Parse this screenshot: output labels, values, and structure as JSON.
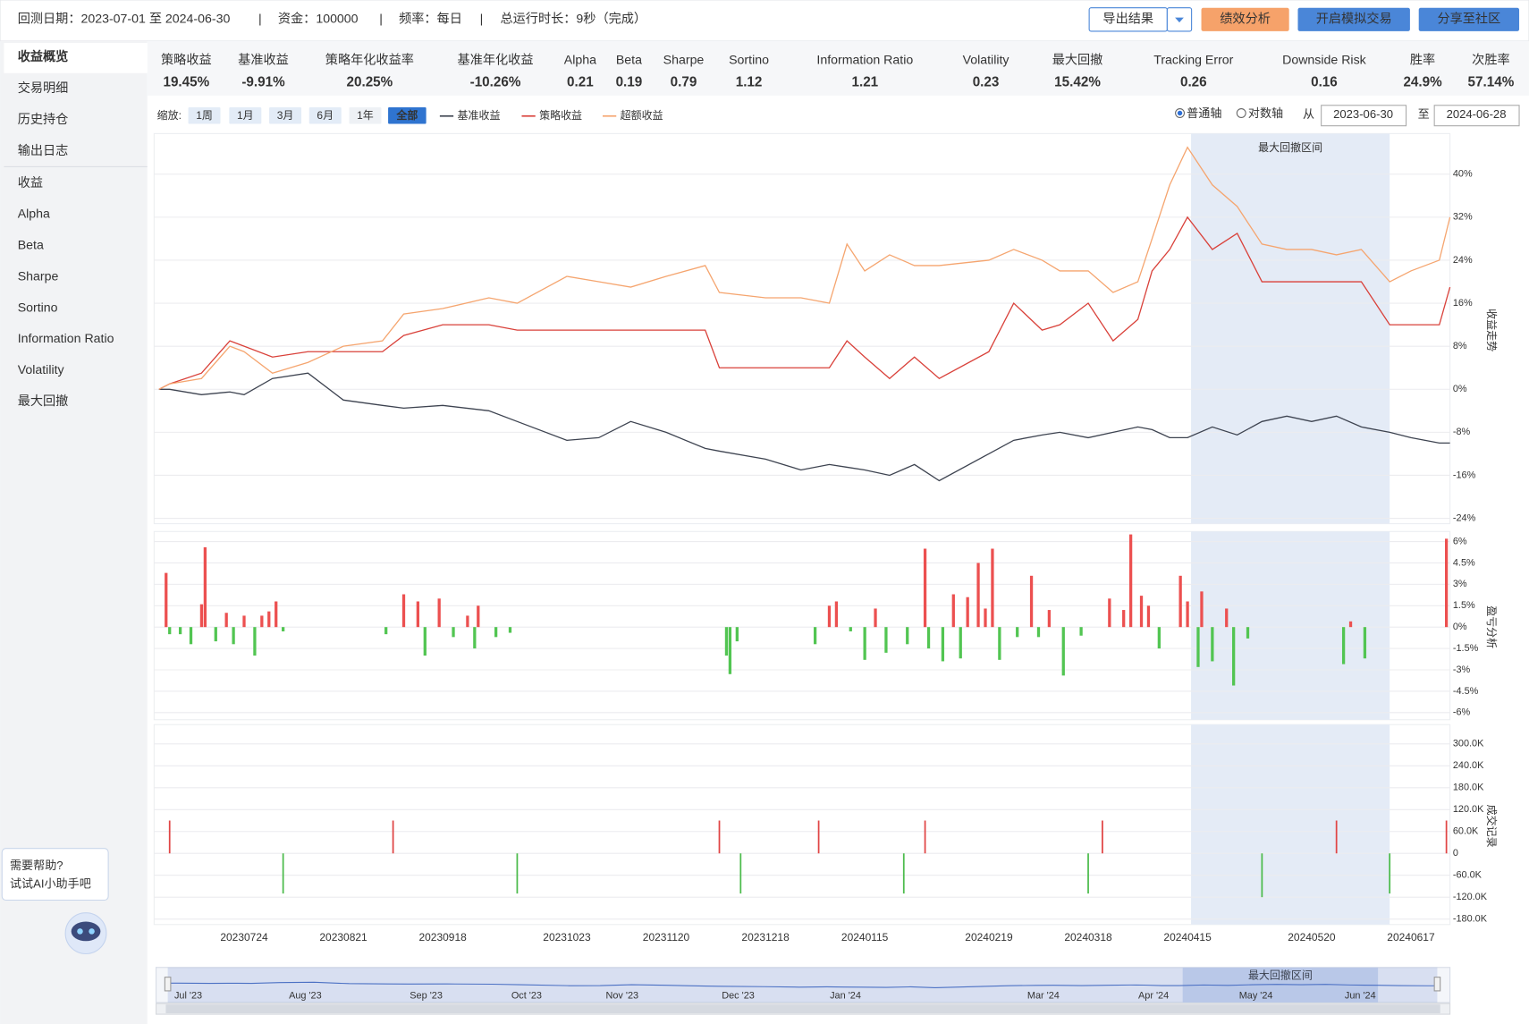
{
  "header": {
    "date_range": "回测日期：2023-07-01 至 2024-06-30",
    "separator": "|",
    "capital": "资金：100000",
    "frequency": "频率：每日",
    "runtime": "总运行时长：9秒（完成）",
    "buttons": [
      "导出结果",
      "绩效分析",
      "开启模拟交易",
      "分享至社区"
    ]
  },
  "sidebar": [
    "收益概览",
    "交易明细",
    "历史持仓",
    "输出日志",
    "收益",
    "Alpha",
    "Beta",
    "Sharpe",
    "Sortino",
    "Information Ratio",
    "Volatility",
    "最大回撤"
  ],
  "metrics": [
    {
      "label": "策略收益",
      "value": "19.45%"
    },
    {
      "label": "基准收益",
      "value": "-9.91%"
    },
    {
      "label": "策略年化收益率",
      "value": "20.25%"
    },
    {
      "label": "基准年化收益",
      "value": "-10.26%"
    },
    {
      "label": "Alpha",
      "value": "0.21"
    },
    {
      "label": "Beta",
      "value": "0.19"
    },
    {
      "label": "Sharpe",
      "value": "0.79"
    },
    {
      "label": "Sortino",
      "value": "1.12"
    },
    {
      "label": "Information Ratio",
      "value": "1.21"
    },
    {
      "label": "Volatility",
      "value": "0.23"
    },
    {
      "label": "最大回撤",
      "value": "15.42%"
    },
    {
      "label": "Tracking Error",
      "value": "0.26"
    },
    {
      "label": "Downside Risk",
      "value": "0.16"
    },
    {
      "label": "胜率",
      "value": "24.9%"
    },
    {
      "label": "次胜率",
      "value": "57.14%"
    }
  ],
  "controls": {
    "zoom_label": "缩放:",
    "zoom_buttons": [
      "1周",
      "1月",
      "3月",
      "6月",
      "1年",
      "全部"
    ],
    "axis_options": [
      "普通轴",
      "对数轴"
    ],
    "from_label": "从",
    "from": "2023-06-30",
    "to_label": "至",
    "to": "2024-06-28"
  },
  "chart_data": [
    {
      "type": "line",
      "y_axis_label": "收益走势",
      "x": [
        "20230630",
        "20230703",
        "20230712",
        "20230720",
        "20230724",
        "20230801",
        "20230811",
        "20230821",
        "20230901",
        "20230907",
        "20230918",
        "20231001",
        "20231009",
        "20231023",
        "20231101",
        "20231110",
        "20231120",
        "20231201",
        "20231205",
        "20231218",
        "20231228",
        "20240105",
        "20240110",
        "20240115",
        "20240122",
        "20240129",
        "20240205",
        "20240219",
        "20240226",
        "20240305",
        "20240310",
        "20240318",
        "20240325",
        "20240401",
        "20240405",
        "20240410",
        "20240415",
        "20240422",
        "20240429",
        "20240506",
        "20240513",
        "20240520",
        "20240527",
        "20240603",
        "20240611",
        "20240617",
        "20240625",
        "20240628"
      ],
      "series": [
        {
          "name": "基准收益",
          "color": "#3d4350",
          "values": [
            0,
            0,
            -1,
            -0.5,
            -1,
            2,
            3,
            -2,
            -3,
            -3.5,
            -3,
            -4,
            -6,
            -9.5,
            -9,
            -6,
            -8,
            -11,
            -11.5,
            -13,
            -15,
            -14,
            -14.5,
            -15,
            -16,
            -14,
            -17,
            -12,
            -9.5,
            -8.5,
            -8,
            -9,
            -8,
            -7,
            -7.5,
            -9,
            -9,
            -7,
            -8.5,
            -6,
            -5,
            -6,
            -5,
            -7,
            -8,
            -9,
            -10,
            -10
          ]
        },
        {
          "name": "策略收益",
          "color": "#d9413a",
          "values": [
            0,
            1,
            3,
            9,
            8,
            6,
            7,
            7,
            7,
            10,
            12,
            12,
            11,
            11,
            11,
            11,
            11,
            11,
            4,
            4,
            4,
            4,
            9,
            6,
            2,
            6,
            2,
            7,
            16,
            11,
            12,
            16,
            9,
            13,
            22,
            26,
            32,
            26,
            29,
            20,
            20,
            20,
            20,
            20,
            12,
            12,
            12,
            19
          ]
        },
        {
          "name": "超额收益",
          "color": "#f5a56f",
          "values": [
            0,
            1,
            2,
            8,
            7,
            3,
            5,
            8,
            9,
            14,
            15,
            17,
            16,
            21,
            20,
            19,
            21,
            23,
            18,
            17,
            17,
            16,
            27,
            22,
            25,
            23,
            23,
            24,
            26,
            24,
            22,
            22,
            18,
            20,
            28,
            38,
            45,
            38,
            34,
            27,
            26,
            26,
            25,
            26,
            20,
            22,
            24,
            32
          ]
        }
      ],
      "xlim": [
        "20230630",
        "20240628"
      ],
      "ylim": [
        -25,
        47
      ],
      "yticks": [
        {
          "value": -24,
          "label": "-24%"
        },
        {
          "value": -16,
          "label": "-16%"
        },
        {
          "value": -8,
          "label": "-8%"
        },
        {
          "value": 0,
          "label": "0%"
        },
        {
          "value": 8,
          "label": "8%"
        },
        {
          "value": 16,
          "label": "16%"
        },
        {
          "value": 24,
          "label": "24%"
        },
        {
          "value": 32,
          "label": "32%"
        },
        {
          "value": 40,
          "label": "40%"
        }
      ],
      "shade": {
        "label": "最大回撤区间",
        "from": "20240416",
        "to": "20240611"
      },
      "grid": true
    },
    {
      "type": "bar",
      "y_axis_label": "盈亏分析",
      "x": [
        "20230702",
        "20230703",
        "20230706",
        "20230709",
        "20230712",
        "20230713",
        "20230716",
        "20230719",
        "20230721",
        "20230724",
        "20230727",
        "20230729",
        "20230731",
        "20230802",
        "20230804",
        "20230902",
        "20230907",
        "20230911",
        "20230913",
        "20230917",
        "20230921",
        "20230925",
        "20230927",
        "20230928",
        "20231003",
        "20231007",
        "20231207",
        "20231208",
        "20231210",
        "20240101",
        "20240105",
        "20240107",
        "20240111",
        "20240115",
        "20240118",
        "20240121",
        "20240127",
        "20240201",
        "20240202",
        "20240206",
        "20240209",
        "20240211",
        "20240213",
        "20240216",
        "20240218",
        "20240220",
        "20240222",
        "20240227",
        "20240302",
        "20240304",
        "20240307",
        "20240311",
        "20240316",
        "20240324",
        "20240328",
        "20240330",
        "20240402",
        "20240404",
        "20240407",
        "20240413",
        "20240415",
        "20240418",
        "20240419",
        "20240422",
        "20240426",
        "20240428",
        "20240502",
        "20240529",
        "20240531",
        "20240604",
        "20240627"
      ],
      "values": [
        3.8,
        -0.5,
        -0.5,
        -1.2,
        1.6,
        5.6,
        -1,
        1,
        -1.2,
        0.8,
        -2,
        0.8,
        1.1,
        1.8,
        -0.3,
        -0.5,
        2.3,
        1.8,
        -2,
        2,
        -0.7,
        0.8,
        -1.5,
        1.5,
        -0.7,
        -0.4,
        -2,
        -3.3,
        -1,
        -1.2,
        1.5,
        1.8,
        -0.3,
        -2.3,
        1.3,
        -1.8,
        -1.2,
        5.5,
        -1.5,
        -2.4,
        2.3,
        -2.2,
        2.1,
        4.5,
        1.3,
        5.5,
        -2.3,
        -0.7,
        3.6,
        -0.7,
        1.2,
        -3.4,
        -0.6,
        2,
        1.2,
        6.5,
        2.2,
        1.5,
        -1.5,
        3.6,
        1.8,
        -2.8,
        2.5,
        -2.4,
        1.3,
        -4.1,
        -0.8,
        -2.6,
        0.4,
        -2.2,
        6.2
      ],
      "up_color": "#ec5050",
      "down_color": "#52c552",
      "xlim": [
        "20230630",
        "20240628"
      ],
      "ylim": [
        -6.5,
        6.5
      ],
      "yticks": [
        {
          "value": -6,
          "label": "-6%"
        },
        {
          "value": -4.5,
          "label": "-4.5%"
        },
        {
          "value": -3,
          "label": "-3%"
        },
        {
          "value": -1.5,
          "label": "-1.5%"
        },
        {
          "value": 0,
          "label": "0%"
        },
        {
          "value": 1.5,
          "label": "1.5%"
        },
        {
          "value": 3,
          "label": "3%"
        },
        {
          "value": 4.5,
          "label": "4.5%"
        },
        {
          "value": 6,
          "label": "6%"
        }
      ],
      "grid": true
    },
    {
      "type": "bar",
      "y_axis_label": "成交记录",
      "x": [
        "20230703",
        "20230804",
        "20230904",
        "20231009",
        "20231205",
        "20231211",
        "20240102",
        "20240126",
        "20240201",
        "20240318",
        "20240322",
        "20240506",
        "20240527",
        "20240611",
        "20240627"
      ],
      "values": [
        90000,
        -110000,
        90000,
        -110000,
        90000,
        -110000,
        90000,
        -110000,
        90000,
        -110000,
        90000,
        -120000,
        90000,
        -110000,
        90000
      ],
      "up_color": "#e04545",
      "down_color": "#4cbb4c",
      "xlim": [
        "20230630",
        "20240628"
      ],
      "ylim": [
        -195000,
        345000
      ],
      "yticks": [
        {
          "value": -180000,
          "label": "-180.0K"
        },
        {
          "value": -120000,
          "label": "-120.0K"
        },
        {
          "value": -60000,
          "label": "-60.0K"
        },
        0,
        {
          "value": 60000,
          "label": "60.0K"
        },
        {
          "value": 120000,
          "label": "120.0K"
        },
        {
          "value": 180000,
          "label": "180.0K"
        },
        {
          "value": 240000,
          "label": "240.0K"
        },
        {
          "value": 300000,
          "label": "300.0K"
        }
      ],
      "xticks": [
        "20230724",
        "20230821",
        "20230918",
        "20231023",
        "20231120",
        "20231218",
        "20240115",
        "20240219",
        "20240318",
        "20240415",
        "20240520",
        "20240617"
      ],
      "grid": true
    }
  ],
  "navigator": {
    "months": [
      "Jul '23",
      "Aug '23",
      "Sep '23",
      "Oct '23",
      "Nov '23",
      "Dec '23",
      "Jan '24",
      "Mar '24",
      "Apr '24",
      "May '24",
      "Jun '24"
    ]
  },
  "help": {
    "line1": "需要帮助?",
    "line2": "试试AI小助手吧"
  }
}
